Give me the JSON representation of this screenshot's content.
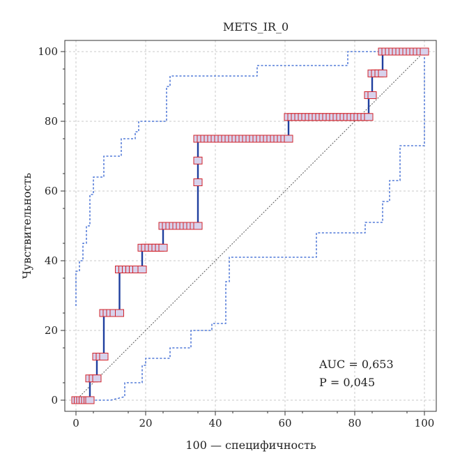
{
  "chart_data": {
    "type": "line",
    "title": "METS_IR_0",
    "xlabel": "100 — специфичность",
    "ylabel": "Чувствительность",
    "xlim": [
      0,
      100
    ],
    "ylim": [
      0,
      100
    ],
    "x_ticks": [
      "0",
      "20",
      "40",
      "60",
      "80",
      "100"
    ],
    "y_ticks": [
      "0",
      "20",
      "40",
      "60",
      "80",
      "100"
    ],
    "grid": true,
    "stats": [
      "AUC = 0,653",
      "P = 0,045"
    ],
    "series": [
      {
        "role": "roc",
        "x": [
          0,
          4,
          4,
          6,
          6,
          8,
          8,
          12.5,
          12.5,
          19,
          19,
          25,
          25,
          35,
          35,
          35,
          35,
          61,
          61,
          84,
          84,
          85,
          85,
          88,
          88,
          100
        ],
        "y": [
          0,
          0,
          6.25,
          6.25,
          12.5,
          12.5,
          25,
          25,
          37.5,
          37.5,
          43.75,
          43.75,
          50,
          50,
          62.5,
          68.75,
          75,
          75,
          81.25,
          81.25,
          87.5,
          87.5,
          93.75,
          93.75,
          100,
          100
        ]
      },
      {
        "role": "ci_upper",
        "x": [
          0,
          0,
          1,
          1,
          2,
          2,
          3,
          3,
          4,
          4,
          5,
          5,
          8,
          8,
          13,
          13,
          17,
          17,
          18,
          18,
          26,
          26,
          27,
          27,
          52,
          52,
          78,
          78,
          100
        ],
        "y": [
          27,
          37,
          37,
          40,
          40,
          45,
          45,
          50,
          50,
          59,
          59,
          64,
          64,
          70,
          70,
          75,
          75,
          77,
          77,
          80,
          80,
          90,
          90,
          93,
          93,
          96,
          96,
          100,
          100
        ]
      },
      {
        "role": "ci_lower",
        "x": [
          0,
          10,
          14,
          14,
          19,
          19,
          20,
          20,
          27,
          27,
          33,
          33,
          39,
          39,
          43,
          43,
          44,
          44,
          69,
          69,
          83,
          83,
          88,
          88,
          90,
          90,
          93,
          93,
          100,
          100
        ],
        "y": [
          0,
          0,
          1,
          5,
          5,
          10,
          10,
          12,
          12,
          15,
          15,
          20,
          20,
          22,
          22,
          34,
          34,
          41,
          41,
          48,
          48,
          51,
          51,
          57,
          57,
          63,
          63,
          73,
          73,
          100
        ]
      }
    ],
    "marker_rows": [
      {
        "y": 0,
        "x": [
          0,
          0.7,
          1.4,
          2.1,
          2.8,
          3.5,
          4.0
        ]
      },
      {
        "y": 6.25,
        "x": [
          4,
          5,
          6
        ]
      },
      {
        "y": 12.5,
        "x": [
          6,
          7,
          8
        ]
      },
      {
        "y": 25,
        "x": [
          8,
          9,
          10,
          11,
          12.5
        ]
      },
      {
        "y": 37.5,
        "x": [
          12.5,
          13.5,
          14.5,
          15.5,
          16.5,
          17.5,
          19
        ]
      },
      {
        "y": 43.75,
        "x": [
          19,
          20,
          21,
          22,
          23,
          24,
          25
        ]
      },
      {
        "y": 50,
        "x": [
          25,
          26,
          27,
          28,
          29,
          30,
          31,
          32,
          33,
          34,
          35
        ]
      },
      {
        "y": 62.5,
        "x": [
          35
        ]
      },
      {
        "y": 68.75,
        "x": [
          35
        ]
      },
      {
        "y": 75,
        "x": [
          35,
          36,
          37,
          38,
          39,
          40,
          41,
          42,
          43,
          44,
          45,
          46,
          47,
          48,
          49,
          50,
          51,
          52,
          53,
          54,
          55,
          56,
          57,
          58,
          59,
          60,
          61
        ]
      },
      {
        "y": 81.25,
        "x": [
          61,
          62,
          63,
          64,
          65,
          66,
          67,
          68,
          69,
          70,
          71,
          72,
          73,
          74,
          75,
          76,
          77,
          78,
          79,
          80,
          81,
          82,
          83,
          84
        ]
      },
      {
        "y": 87.5,
        "x": [
          84,
          85
        ]
      },
      {
        "y": 93.75,
        "x": [
          85,
          86,
          87,
          88
        ]
      },
      {
        "y": 100,
        "x": [
          88,
          89,
          90,
          91,
          92,
          93,
          94,
          95,
          96,
          97,
          98,
          99,
          100
        ]
      }
    ],
    "colors": {
      "roc": "#1f3f9e",
      "ci": "#2f5fd0",
      "diagonal": "#555555",
      "marker_fill": "#d8d2ec",
      "marker_stroke": "#d2232a"
    }
  }
}
